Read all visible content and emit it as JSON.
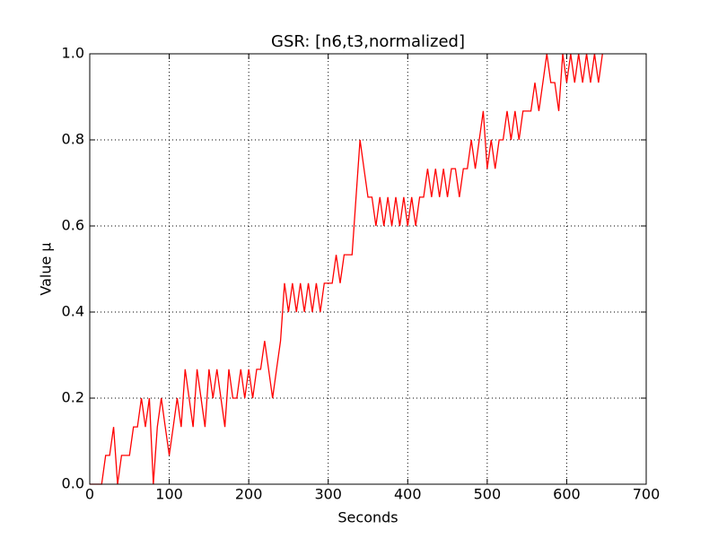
{
  "chart_data": {
    "type": "line",
    "title": "GSR: [n6,t3,normalized]",
    "xlabel": "Seconds",
    "ylabel": "Value μ",
    "x": [
      0,
      5,
      10,
      15,
      20,
      25,
      30,
      35,
      40,
      45,
      50,
      55,
      60,
      65,
      70,
      75,
      80,
      85,
      90,
      95,
      100,
      105,
      110,
      115,
      120,
      125,
      130,
      135,
      140,
      145,
      150,
      155,
      160,
      165,
      170,
      175,
      180,
      185,
      190,
      195,
      200,
      205,
      210,
      215,
      220,
      225,
      230,
      235,
      240,
      245,
      250,
      255,
      260,
      265,
      270,
      275,
      280,
      285,
      290,
      295,
      300,
      305,
      310,
      315,
      320,
      325,
      330,
      335,
      340,
      345,
      350,
      355,
      360,
      365,
      370,
      375,
      380,
      385,
      390,
      395,
      400,
      405,
      410,
      415,
      420,
      425,
      430,
      435,
      440,
      445,
      450,
      455,
      460,
      465,
      470,
      475,
      480,
      485,
      490,
      495,
      500,
      505,
      510,
      515,
      520,
      525,
      530,
      535,
      540,
      545,
      550,
      555,
      560,
      565,
      570,
      575,
      580,
      585,
      590,
      595,
      600,
      605,
      610,
      615,
      620,
      625,
      630,
      635,
      640,
      645
    ],
    "values": [
      0,
      0,
      0,
      0,
      0.067,
      0.067,
      0.133,
      0,
      0.067,
      0.067,
      0.067,
      0.133,
      0.133,
      0.2,
      0.133,
      0.2,
      0,
      0.133,
      0.2,
      0.133,
      0.067,
      0.133,
      0.2,
      0.133,
      0.267,
      0.2,
      0.133,
      0.267,
      0.2,
      0.133,
      0.267,
      0.2,
      0.267,
      0.2,
      0.133,
      0.267,
      0.2,
      0.2,
      0.267,
      0.2,
      0.267,
      0.2,
      0.267,
      0.267,
      0.333,
      0.267,
      0.2,
      0.267,
      0.333,
      0.467,
      0.4,
      0.467,
      0.4,
      0.467,
      0.4,
      0.467,
      0.4,
      0.467,
      0.4,
      0.467,
      0.467,
      0.467,
      0.533,
      0.467,
      0.533,
      0.533,
      0.533,
      0.667,
      0.8,
      0.733,
      0.667,
      0.667,
      0.6,
      0.667,
      0.6,
      0.667,
      0.6,
      0.667,
      0.6,
      0.667,
      0.6,
      0.667,
      0.6,
      0.667,
      0.667,
      0.733,
      0.667,
      0.733,
      0.667,
      0.733,
      0.667,
      0.733,
      0.733,
      0.667,
      0.733,
      0.733,
      0.8,
      0.733,
      0.8,
      0.867,
      0.733,
      0.8,
      0.733,
      0.8,
      0.8,
      0.867,
      0.8,
      0.867,
      0.8,
      0.867,
      0.867,
      0.867,
      0.933,
      0.867,
      0.933,
      1.0,
      0.933,
      0.933,
      0.867,
      1.0,
      0.933,
      1.0,
      0.933,
      1.0,
      0.933,
      1.0,
      0.933,
      1.0,
      0.933,
      1.0
    ],
    "color": "#ff0000",
    "xlim": [
      0,
      700
    ],
    "xticks": [
      0,
      100,
      200,
      300,
      400,
      500,
      600,
      700
    ],
    "ylim": [
      0,
      1
    ],
    "yticks": [
      {
        "value": 0,
        "label": "0.0"
      },
      0.2,
      0.4,
      0.6,
      0.8,
      {
        "value": 1,
        "label": "1.0"
      }
    ],
    "grid": true
  }
}
